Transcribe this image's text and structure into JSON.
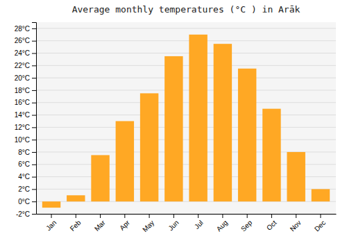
{
  "chart_data": {
    "type": "bar",
    "title": "Average monthly temperatures (°C ) in Arāk",
    "categories": [
      "Jan",
      "Feb",
      "Mar",
      "Apr",
      "May",
      "Jun",
      "Jul",
      "Aug",
      "Sep",
      "Oct",
      "Nov",
      "Dec"
    ],
    "values": [
      -1,
      1,
      7.5,
      13,
      17.5,
      23.5,
      27,
      25.5,
      21.5,
      15,
      8,
      2
    ],
    "color": "#FFA824",
    "ylim": [
      -2,
      29
    ],
    "yticks": [
      {
        "value": -2,
        "label": "-2°C"
      },
      {
        "value": 0,
        "label": "0°C"
      },
      {
        "value": 2,
        "label": "2°C"
      },
      {
        "value": 4,
        "label": "4°C"
      },
      {
        "value": 6,
        "label": "6°C"
      },
      {
        "value": 8,
        "label": "8°C"
      },
      {
        "value": 10,
        "label": "10°C"
      },
      {
        "value": 12,
        "label": "12°C"
      },
      {
        "value": 14,
        "label": "14°C"
      },
      {
        "value": 16,
        "label": "16°C"
      },
      {
        "value": 18,
        "label": "18°C"
      },
      {
        "value": 20,
        "label": "20°C"
      },
      {
        "value": 22,
        "label": "22°C"
      },
      {
        "value": 24,
        "label": "24°C"
      },
      {
        "value": 26,
        "label": "26°C"
      },
      {
        "value": 28,
        "label": "28°C"
      }
    ],
    "grid": true
  }
}
